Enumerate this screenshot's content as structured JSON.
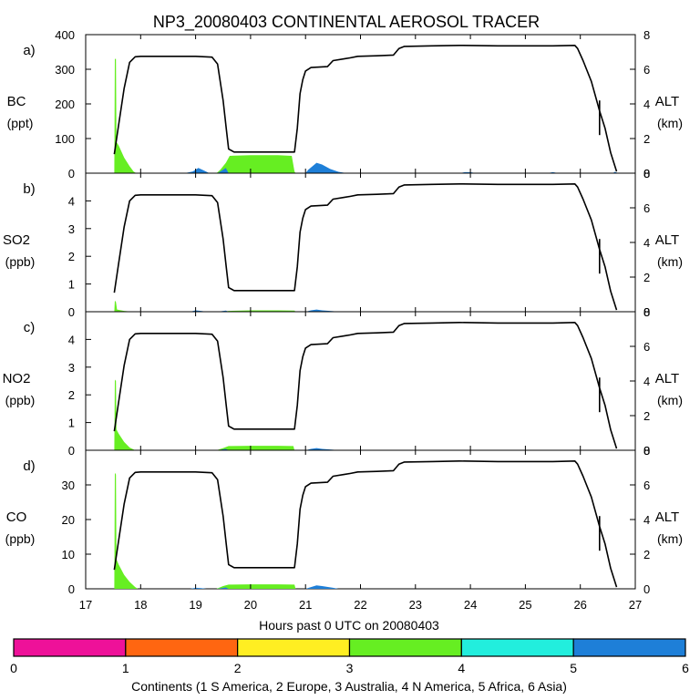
{
  "chart_data": {
    "title": "NP3_20080403 CONTINENTAL AEROSOL TRACER",
    "type": "line",
    "xlabel": "Hours past 0 UTC on 20080403",
    "xlim": [
      17,
      27
    ],
    "x_ticks": [
      17,
      18,
      19,
      20,
      21,
      22,
      23,
      24,
      25,
      26,
      27
    ],
    "altitude_axis": {
      "label": "ALT",
      "unit": "(km)",
      "ylim": [
        0,
        8
      ],
      "ticks": [
        0,
        2,
        4,
        6,
        8
      ]
    },
    "altitude_profile": [
      [
        17.52,
        1.1
      ],
      [
        17.6,
        2.8
      ],
      [
        17.7,
        4.9
      ],
      [
        17.8,
        6.4
      ],
      [
        17.9,
        6.72
      ],
      [
        18.0,
        6.75
      ],
      [
        18.5,
        6.75
      ],
      [
        19.0,
        6.75
      ],
      [
        19.3,
        6.7
      ],
      [
        19.4,
        6.3
      ],
      [
        19.5,
        4.2
      ],
      [
        19.56,
        2.5
      ],
      [
        19.6,
        1.4
      ],
      [
        19.7,
        1.22
      ],
      [
        20.0,
        1.22
      ],
      [
        20.5,
        1.22
      ],
      [
        20.8,
        1.22
      ],
      [
        20.85,
        2.6
      ],
      [
        20.9,
        4.6
      ],
      [
        20.95,
        5.4
      ],
      [
        21.0,
        5.9
      ],
      [
        21.1,
        6.1
      ],
      [
        21.4,
        6.15
      ],
      [
        21.5,
        6.5
      ],
      [
        21.7,
        6.6
      ],
      [
        21.8,
        6.65
      ],
      [
        21.95,
        6.75
      ],
      [
        22.3,
        6.78
      ],
      [
        22.6,
        6.82
      ],
      [
        22.7,
        7.2
      ],
      [
        22.8,
        7.32
      ],
      [
        23.3,
        7.35
      ],
      [
        23.8,
        7.38
      ],
      [
        24.5,
        7.35
      ],
      [
        25.0,
        7.35
      ],
      [
        25.5,
        7.35
      ],
      [
        25.9,
        7.38
      ],
      [
        25.95,
        7.2
      ],
      [
        26.05,
        6.5
      ],
      [
        26.2,
        5.3
      ],
      [
        26.35,
        3.6
      ],
      [
        26.45,
        2.6
      ],
      [
        26.55,
        1.2
      ],
      [
        26.66,
        0.1
      ]
    ],
    "source_fill_color": {
      "Australia": "#66ee22",
      "Asia": "#1e7fd8"
    },
    "panels": [
      {
        "letter": "a)",
        "ylabel": "BC",
        "unit": "(ppt)",
        "ylim": [
          0,
          400
        ],
        "ticks": [
          0,
          100,
          200,
          300,
          400
        ],
        "series": [
          {
            "name": "Australia",
            "points": [
              [
                17.52,
                0
              ],
              [
                17.53,
                330
              ],
              [
                17.55,
                330
              ],
              [
                17.56,
                90
              ],
              [
                17.6,
                80
              ],
              [
                17.7,
                45
              ],
              [
                17.8,
                20
              ],
              [
                17.87,
                5
              ],
              [
                17.92,
                0
              ],
              [
                19.38,
                0
              ],
              [
                19.45,
                10
              ],
              [
                19.55,
                30
              ],
              [
                19.62,
                50
              ],
              [
                20.0,
                52
              ],
              [
                20.5,
                52
              ],
              [
                20.75,
                50
              ],
              [
                20.8,
                5
              ],
              [
                20.82,
                0
              ]
            ]
          },
          {
            "name": "Asia",
            "points": [
              [
                18.8,
                0
              ],
              [
                18.95,
                5
              ],
              [
                19.05,
                15
              ],
              [
                19.15,
                8
              ],
              [
                19.25,
                0
              ],
              [
                19.4,
                0
              ],
              [
                19.55,
                15
              ],
              [
                19.6,
                0
              ],
              [
                21.0,
                0
              ],
              [
                21.05,
                10
              ],
              [
                21.2,
                30
              ],
              [
                21.3,
                25
              ],
              [
                21.45,
                12
              ],
              [
                21.6,
                4
              ],
              [
                21.75,
                0
              ],
              [
                23.8,
                0
              ],
              [
                23.9,
                3
              ],
              [
                24.0,
                3
              ],
              [
                24.1,
                0
              ],
              [
                25.4,
                0
              ],
              [
                25.5,
                3
              ],
              [
                25.6,
                0
              ],
              [
                26.6,
                0
              ],
              [
                26.62,
                4
              ],
              [
                26.7,
                0
              ]
            ]
          }
        ]
      },
      {
        "letter": "b)",
        "ylabel": "SO2",
        "unit": "(ppb)",
        "ylim": [
          0,
          5
        ],
        "ticks": [
          0,
          1,
          2,
          3,
          4
        ],
        "series": [
          {
            "name": "Australia",
            "points": [
              [
                17.52,
                0
              ],
              [
                17.53,
                0.4
              ],
              [
                17.55,
                0.35
              ],
              [
                17.57,
                0.08
              ],
              [
                17.7,
                0.03
              ],
              [
                17.85,
                0
              ],
              [
                19.5,
                0
              ],
              [
                19.6,
                0.03
              ],
              [
                20.0,
                0.05
              ],
              [
                20.5,
                0.05
              ],
              [
                20.8,
                0.04
              ],
              [
                20.82,
                0
              ]
            ]
          },
          {
            "name": "Asia",
            "points": [
              [
                18.9,
                0
              ],
              [
                19.0,
                0.05
              ],
              [
                19.1,
                0.03
              ],
              [
                19.2,
                0
              ],
              [
                19.4,
                0
              ],
              [
                19.55,
                0.04
              ],
              [
                19.6,
                0
              ],
              [
                21.0,
                0
              ],
              [
                21.1,
                0.05
              ],
              [
                21.2,
                0.08
              ],
              [
                21.3,
                0.05
              ],
              [
                21.5,
                0.02
              ],
              [
                21.6,
                0
              ]
            ]
          }
        ]
      },
      {
        "letter": "c)",
        "ylabel": "NO2",
        "unit": "(ppb)",
        "ylim": [
          0,
          5
        ],
        "ticks": [
          0,
          1,
          2,
          3,
          4
        ],
        "series": [
          {
            "name": "Australia",
            "points": [
              [
                17.52,
                0
              ],
              [
                17.53,
                2.55
              ],
              [
                17.55,
                2.5
              ],
              [
                17.56,
                0.75
              ],
              [
                17.6,
                0.6
              ],
              [
                17.7,
                0.3
              ],
              [
                17.8,
                0.1
              ],
              [
                17.9,
                0
              ],
              [
                19.38,
                0
              ],
              [
                19.5,
                0.08
              ],
              [
                19.6,
                0.15
              ],
              [
                20.0,
                0.16
              ],
              [
                20.5,
                0.16
              ],
              [
                20.78,
                0.15
              ],
              [
                20.8,
                0
              ]
            ]
          },
          {
            "name": "Asia",
            "points": [
              [
                19.4,
                0
              ],
              [
                19.55,
                0.05
              ],
              [
                19.6,
                0
              ],
              [
                21.0,
                0
              ],
              [
                21.1,
                0.05
              ],
              [
                21.2,
                0.08
              ],
              [
                21.3,
                0.05
              ],
              [
                21.5,
                0.02
              ],
              [
                21.6,
                0
              ]
            ]
          }
        ]
      },
      {
        "letter": "d)",
        "ylabel": "CO",
        "unit": "(ppb)",
        "ylim": [
          0,
          40
        ],
        "ticks": [
          0,
          10,
          20,
          30
        ],
        "series": [
          {
            "name": "Australia",
            "points": [
              [
                17.52,
                0
              ],
              [
                17.53,
                33.5
              ],
              [
                17.55,
                33
              ],
              [
                17.56,
                8.5
              ],
              [
                17.6,
                7
              ],
              [
                17.7,
                4
              ],
              [
                17.8,
                2
              ],
              [
                17.9,
                0.5
              ],
              [
                17.95,
                0
              ],
              [
                19.38,
                0
              ],
              [
                19.5,
                0.8
              ],
              [
                19.6,
                1.2
              ],
              [
                20.0,
                1.3
              ],
              [
                20.5,
                1.3
              ],
              [
                20.8,
                1.2
              ],
              [
                20.82,
                0
              ]
            ]
          },
          {
            "name": "Asia",
            "points": [
              [
                18.9,
                0
              ],
              [
                19.0,
                0.3
              ],
              [
                19.1,
                0.2
              ],
              [
                19.2,
                0
              ],
              [
                19.4,
                0
              ],
              [
                19.55,
                0.4
              ],
              [
                19.6,
                0
              ],
              [
                21.0,
                0
              ],
              [
                21.1,
                0.5
              ],
              [
                21.2,
                1
              ],
              [
                21.3,
                0.8
              ],
              [
                21.5,
                0.3
              ],
              [
                21.6,
                0
              ]
            ]
          }
        ]
      }
    ],
    "colorbar": {
      "ticks": [
        "0",
        "1",
        "2",
        "3",
        "4",
        "5",
        "6"
      ],
      "colors": [
        "#ee1199",
        "#ff6611",
        "#ffee22",
        "#66ee22",
        "#22eedd",
        "#1e7fd8"
      ],
      "label": "Continents (1 S America, 2 Europe, 3 Australia, 4 N America, 5 Africa, 6 Asia)"
    }
  }
}
